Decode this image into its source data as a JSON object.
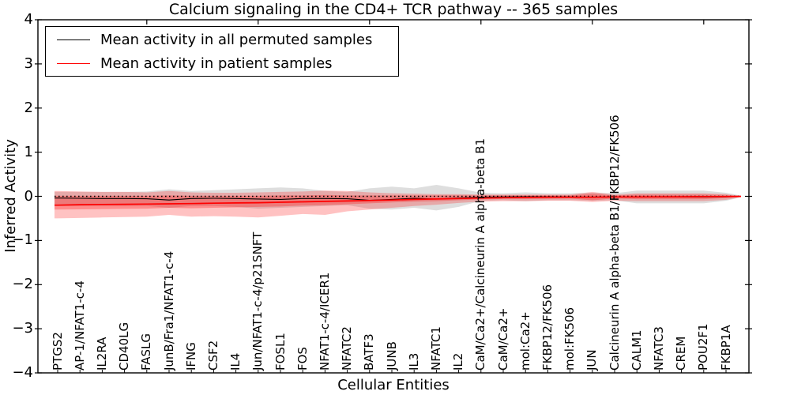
{
  "figure": {
    "title": "Calcium signaling in the CD4+ TCR pathway -- 365 samples",
    "xlabel": "Cellular Entities",
    "ylabel": "Inferred Activity"
  },
  "legend": {
    "entries": [
      {
        "label": "Mean activity in all permuted samples",
        "color": "#000000"
      },
      {
        "label": "Mean activity in patient samples",
        "color": "#ff0000"
      }
    ]
  },
  "chart_data": {
    "type": "line",
    "title": "Calcium signaling in the CD4+ TCR pathway -- 365 samples",
    "xlabel": "Cellular Entities",
    "ylabel": "Inferred Activity",
    "ylim": [
      -4,
      4
    ],
    "yticks": [
      4,
      3,
      2,
      1,
      0,
      -1,
      -2,
      -3,
      -4
    ],
    "yticklabels": [
      "4",
      "3",
      "2",
      "1",
      "0",
      "−1",
      "−2",
      "−3",
      "−4"
    ],
    "grid": false,
    "legend_position": "upper left",
    "zero_line": {
      "y": 0,
      "style": "dotted",
      "color": "#000000"
    },
    "categories": [
      "PTGS2",
      "AP-1/NFAT1-c-4",
      "IL2RA",
      "CD40LG",
      "FASLG",
      "JunB/Fra1/NFAT1-c-4",
      "IFNG",
      "CSF2",
      "IL4",
      "Jun/NFAT1-c-4/p21SNFT",
      "FOSL1",
      "FOS",
      "NFAT1-c-4/ICER1",
      "NFATC2",
      "BATF3",
      "JUNB",
      "IL3",
      "NFATC1",
      "IL2",
      "CaM/Ca2+/Calcineurin A alpha-beta B1",
      "CaM/Ca2+",
      "mol:Ca2+",
      "FKBP12/FK506",
      "mol:FK506",
      "JUN",
      "Calcineurin A alpha-beta B1/FKBP12/FK506",
      "CALM1",
      "NFATC3",
      "CREM",
      "POU2F1",
      "FKBP1A"
    ],
    "series": [
      {
        "name": "Mean activity in all permuted samples",
        "color": "#000000",
        "width": 1.1,
        "values": [
          -0.04,
          -0.045,
          -0.05,
          -0.05,
          -0.055,
          -0.085,
          -0.05,
          -0.045,
          -0.05,
          -0.06,
          -0.07,
          -0.05,
          -0.05,
          -0.055,
          -0.09,
          -0.07,
          -0.045,
          -0.06,
          -0.04,
          -0.02,
          -0.015,
          -0.01,
          -0.01,
          -0.015,
          -0.02,
          -0.01,
          -0.015,
          -0.015,
          -0.015,
          -0.015,
          -0.01
        ]
      },
      {
        "name": "Mean activity in patient samples",
        "color": "#ff0000",
        "width": 1.7,
        "values": [
          -0.2,
          -0.19,
          -0.185,
          -0.18,
          -0.175,
          -0.17,
          -0.165,
          -0.155,
          -0.15,
          -0.145,
          -0.135,
          -0.125,
          -0.115,
          -0.105,
          -0.095,
          -0.085,
          -0.07,
          -0.06,
          -0.05,
          -0.04,
          -0.03,
          -0.025,
          -0.02,
          -0.02,
          -0.02,
          -0.015,
          -0.015,
          -0.012,
          -0.01,
          -0.008,
          -0.005
        ]
      }
    ],
    "bands": [
      {
        "name": "permuted-samples-range",
        "color": "rgba(0,0,0,0.13)",
        "upper": [
          0.1,
          0.1,
          0.1,
          0.1,
          0.11,
          0.16,
          0.12,
          0.14,
          0.16,
          0.18,
          0.2,
          0.18,
          0.12,
          0.1,
          0.18,
          0.22,
          0.18,
          0.26,
          0.18,
          0.08,
          0.07,
          0.09,
          0.07,
          0.07,
          0.08,
          0.07,
          0.13,
          0.13,
          0.13,
          0.13,
          0.08
        ],
        "lower": [
          -0.22,
          -0.22,
          -0.22,
          -0.22,
          -0.22,
          -0.26,
          -0.22,
          -0.22,
          -0.24,
          -0.28,
          -0.26,
          -0.24,
          -0.22,
          -0.2,
          -0.28,
          -0.3,
          -0.26,
          -0.32,
          -0.24,
          -0.1,
          -0.09,
          -0.11,
          -0.09,
          -0.09,
          -0.1,
          -0.09,
          -0.16,
          -0.16,
          -0.16,
          -0.16,
          -0.1
        ]
      },
      {
        "name": "patient-samples-range-outer",
        "color": "rgba(255,0,0,0.24)",
        "upper": [
          0.12,
          0.11,
          0.1,
          0.1,
          0.09,
          0.12,
          0.09,
          0.08,
          0.08,
          0.09,
          0.1,
          0.11,
          0.13,
          0.12,
          0.09,
          0.07,
          0.06,
          0.05,
          0.05,
          0.04,
          0.04,
          0.04,
          0.04,
          0.04,
          0.1,
          0.04,
          0.07,
          0.07,
          0.07,
          0.07,
          0.05
        ],
        "lower": [
          -0.5,
          -0.49,
          -0.48,
          -0.47,
          -0.46,
          -0.42,
          -0.46,
          -0.45,
          -0.46,
          -0.48,
          -0.44,
          -0.4,
          -0.42,
          -0.34,
          -0.3,
          -0.26,
          -0.22,
          -0.19,
          -0.15,
          -0.12,
          -0.11,
          -0.11,
          -0.1,
          -0.1,
          -0.13,
          -0.1,
          -0.11,
          -0.11,
          -0.11,
          -0.11,
          -0.08
        ]
      },
      {
        "name": "patient-samples-range-inner",
        "color": "rgba(255,0,0,0.28)",
        "upper": [
          0.01,
          0.01,
          0.01,
          0.01,
          0.01,
          0.02,
          0.01,
          0.01,
          0.01,
          0.01,
          0.02,
          0.02,
          0.03,
          0.02,
          0.02,
          0.02,
          0.02,
          0.02,
          0.02,
          0.02,
          0.02,
          0.02,
          0.02,
          0.02,
          0.06,
          0.02,
          0.04,
          0.04,
          0.04,
          0.04,
          0.03
        ],
        "lower": [
          -0.3,
          -0.295,
          -0.29,
          -0.285,
          -0.28,
          -0.26,
          -0.27,
          -0.26,
          -0.25,
          -0.24,
          -0.23,
          -0.21,
          -0.2,
          -0.18,
          -0.16,
          -0.14,
          -0.12,
          -0.11,
          -0.09,
          -0.07,
          -0.06,
          -0.06,
          -0.055,
          -0.05,
          -0.09,
          -0.05,
          -0.065,
          -0.065,
          -0.065,
          -0.065,
          -0.04
        ]
      }
    ]
  }
}
